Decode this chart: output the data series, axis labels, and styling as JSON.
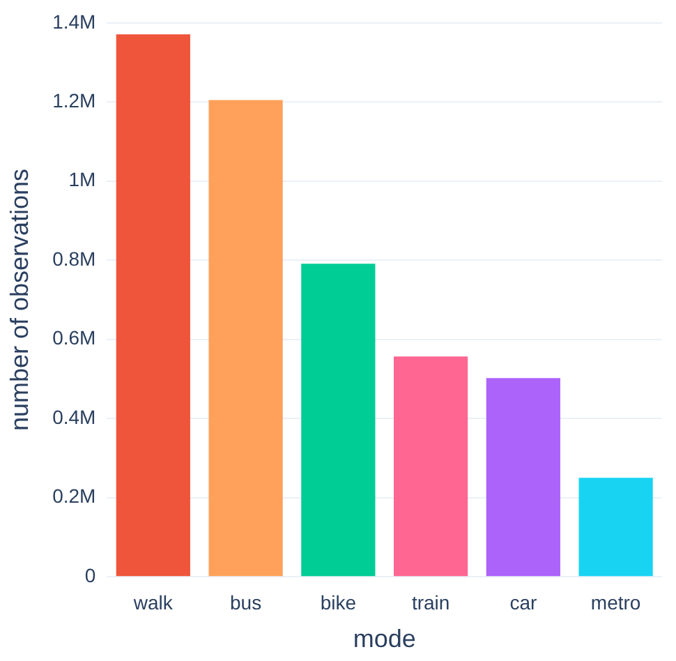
{
  "chart_data": {
    "type": "bar",
    "xlabel": "mode",
    "ylabel": "number of observations",
    "categories": [
      "walk",
      "bus",
      "bike",
      "train",
      "car",
      "metro"
    ],
    "values": [
      1.371,
      1.205,
      0.791,
      0.557,
      0.502,
      0.25
    ],
    "colors": [
      "#ef553b",
      "#ffa15a",
      "#00cc96",
      "#ff6692",
      "#ab63fa",
      "#19d3f3"
    ],
    "ylim": [
      0,
      1.4
    ],
    "yticks": [
      0,
      {
        "value": 0.2,
        "label": "0.2M"
      },
      {
        "value": 0.4,
        "label": "0.4M"
      },
      {
        "value": 0.6,
        "label": "0.6M"
      },
      {
        "value": 0.8,
        "label": "0.8M"
      },
      {
        "value": 1,
        "label": "1M"
      },
      {
        "value": 1.2,
        "label": "1.2M"
      },
      {
        "value": 1.4,
        "label": "1.4M"
      }
    ],
    "grid": "y",
    "legend": false
  }
}
